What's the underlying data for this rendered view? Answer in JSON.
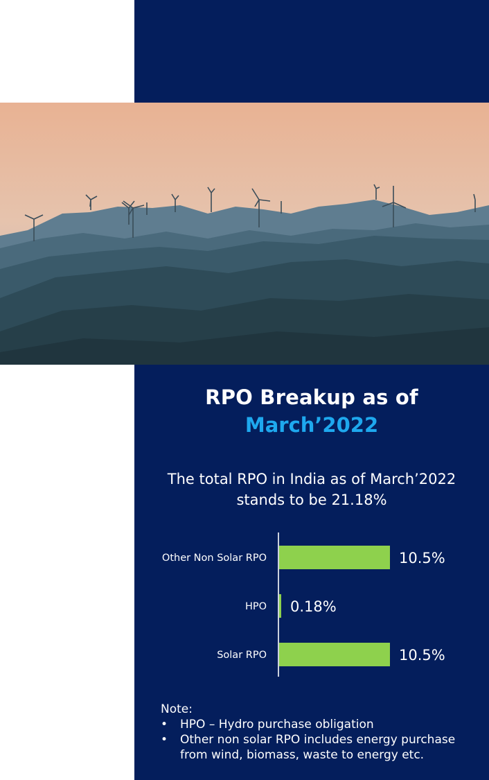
{
  "header": {
    "title_line1": "RPO Breakup as of",
    "title_line2": "March’2022",
    "subtitle": "The total RPO in India as of March’2022 stands to be 21.18%"
  },
  "chart_data": {
    "type": "bar",
    "orientation": "horizontal",
    "categories": [
      "Other Non Solar RPO",
      "HPO",
      "Solar RPO"
    ],
    "values": [
      10.5,
      0.18,
      10.5
    ],
    "value_labels": [
      "10.5%",
      "0.18%",
      "10.5%"
    ],
    "unit": "%",
    "xlim": [
      0,
      12
    ],
    "bar_color": "#8ed14d",
    "grid": false,
    "title": "",
    "xlabel": "",
    "ylabel": ""
  },
  "notes": {
    "heading": "Note:",
    "items": [
      "HPO – Hydro purchase obligation",
      "Other non solar RPO includes energy purchase from wind, biomass, waste to energy etc."
    ]
  },
  "colors": {
    "panel": "#041e5c",
    "accent": "#1ea8ee",
    "bar": "#8ed14d"
  }
}
